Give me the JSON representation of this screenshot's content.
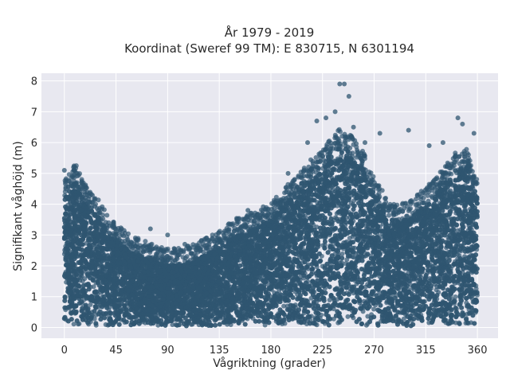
{
  "chart_data": {
    "type": "scatter",
    "title_lines": [
      "År 1979 - 2019",
      "Koordinat (Sweref 99 TM): E 830715, N 6301194"
    ],
    "xlabel": "Vågriktning (grader)",
    "ylabel": "Signifikant våghöjd (m)",
    "xlim": [
      -20,
      378
    ],
    "ylim": [
      -0.35,
      8.25
    ],
    "xticks": [
      0,
      45,
      90,
      135,
      180,
      225,
      270,
      315,
      360
    ],
    "yticks": [
      0,
      1,
      2,
      3,
      4,
      5,
      6,
      7,
      8
    ],
    "grid": true,
    "legend": "none",
    "colors": {
      "marker": "#2f5670",
      "plot_bg": "#e8e8f0",
      "grid": "#ffffff",
      "text": "#2a2a2a"
    },
    "series": [
      {
        "upper_envelope": [
          [
            0,
            4.2
          ],
          [
            5,
            4.5
          ],
          [
            10,
            4.8
          ],
          [
            15,
            4.3
          ],
          [
            20,
            4.0
          ],
          [
            30,
            3.6
          ],
          [
            40,
            3.0
          ],
          [
            50,
            2.7
          ],
          [
            60,
            2.4
          ],
          [
            75,
            2.2
          ],
          [
            90,
            2.0
          ],
          [
            105,
            2.05
          ],
          [
            120,
            2.3
          ],
          [
            135,
            2.6
          ],
          [
            150,
            3.0
          ],
          [
            165,
            3.2
          ],
          [
            180,
            3.5
          ],
          [
            195,
            4.1
          ],
          [
            210,
            4.7
          ],
          [
            225,
            5.3
          ],
          [
            240,
            5.9
          ],
          [
            250,
            5.7
          ],
          [
            260,
            5.2
          ],
          [
            270,
            4.3
          ],
          [
            285,
            3.5
          ],
          [
            300,
            3.5
          ],
          [
            315,
            4.0
          ],
          [
            330,
            4.6
          ],
          [
            340,
            5.1
          ],
          [
            350,
            5.3
          ],
          [
            360,
            4.2
          ]
        ],
        "outliers": [
          [
            0,
            5.1
          ],
          [
            8,
            5.2
          ],
          [
            12,
            4.4
          ],
          [
            22,
            4.35
          ],
          [
            45,
            3.1
          ],
          [
            75,
            3.2
          ],
          [
            90,
            3.0
          ],
          [
            105,
            2.7
          ],
          [
            135,
            2.8
          ],
          [
            160,
            3.8
          ],
          [
            195,
            5.0
          ],
          [
            212,
            6.0
          ],
          [
            220,
            6.7
          ],
          [
            228,
            6.8
          ],
          [
            236,
            7.0
          ],
          [
            240,
            7.9
          ],
          [
            244,
            7.9
          ],
          [
            248,
            7.5
          ],
          [
            252,
            6.5
          ],
          [
            262,
            6.0
          ],
          [
            275,
            6.3
          ],
          [
            300,
            6.4
          ],
          [
            318,
            5.9
          ],
          [
            330,
            6.0
          ],
          [
            343,
            6.8
          ],
          [
            347,
            6.6
          ],
          [
            357,
            6.3
          ]
        ]
      }
    ]
  }
}
